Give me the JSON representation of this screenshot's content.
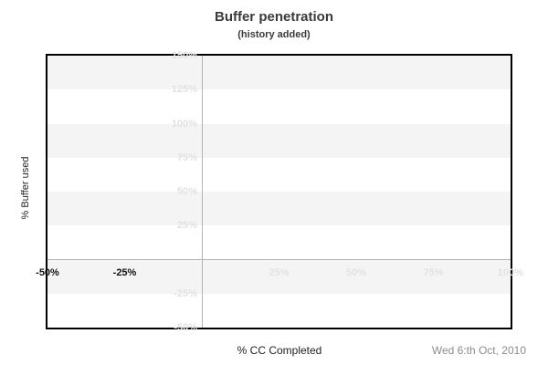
{
  "header": {
    "title": "Buffer penetration",
    "subtitle": "(history added)"
  },
  "footer": {
    "date": "Wed 6:th Oct, 2010"
  },
  "chart_data": {
    "type": "line",
    "title": "Buffer penetration",
    "subtitle": "(history added)",
    "xlabel": "% CC Completed",
    "ylabel": "% Buffer used",
    "xlim": [
      -50,
      100
    ],
    "ylim": [
      -50,
      150
    ],
    "xticks": [
      {
        "value": -50,
        "label": "-50%",
        "emphasized": true
      },
      {
        "value": -25,
        "label": "-25%",
        "emphasized": true
      },
      {
        "value": 25,
        "label": "25%",
        "emphasized": false
      },
      {
        "value": 50,
        "label": "50%",
        "emphasized": false
      },
      {
        "value": 75,
        "label": "75%",
        "emphasized": false
      },
      {
        "value": 100,
        "label": "100%",
        "emphasized": false
      }
    ],
    "yticks": [
      {
        "value": 150,
        "label": "150%"
      },
      {
        "value": 125,
        "label": "125%"
      },
      {
        "value": 100,
        "label": "100%"
      },
      {
        "value": 75,
        "label": "75%"
      },
      {
        "value": 50,
        "label": "50%"
      },
      {
        "value": 25,
        "label": "25%"
      },
      {
        "value": -25,
        "label": "-25%"
      },
      {
        "value": -50,
        "label": "-50%"
      }
    ],
    "series": [],
    "grid": {
      "alternating_bands": true,
      "band_step": 25,
      "band_start": "shaded",
      "zero_x_gridline": true,
      "zero_y_gridline": true
    },
    "legend": "none"
  },
  "colors": {
    "band": "#f4f4f4",
    "grid": "#b4b4b4",
    "tick_light": "#e2e2e2",
    "tick_dark": "#111111",
    "title": "#3a3a3a",
    "axis": "#222222",
    "date": "#8c8c8c",
    "border": "#000000"
  }
}
